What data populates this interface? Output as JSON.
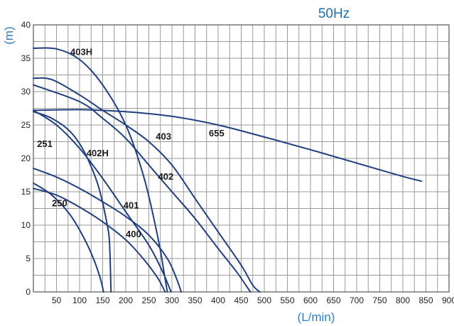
{
  "chart_data": {
    "type": "line",
    "title": "50Hz",
    "xlabel": "(L/min)",
    "ylabel": "(m)",
    "xlim": [
      0,
      900
    ],
    "ylim": [
      0,
      40
    ],
    "x_ticks": [
      50,
      100,
      150,
      200,
      250,
      300,
      350,
      400,
      450,
      500,
      550,
      600,
      650,
      700,
      750,
      800,
      850,
      900
    ],
    "y_ticks": [
      0,
      5,
      10,
      15,
      20,
      25,
      30,
      35,
      40
    ],
    "grid": true,
    "line_color": "#1f3f7f",
    "grid_color": "#9a9a9a",
    "series": [
      {
        "name": "403H",
        "label_at": [
          80,
          35.5
        ],
        "points": [
          [
            0,
            36.5
          ],
          [
            50,
            36.4
          ],
          [
            100,
            34.8
          ],
          [
            150,
            31
          ],
          [
            200,
            25
          ],
          [
            240,
            17
          ],
          [
            270,
            8
          ],
          [
            285,
            2
          ],
          [
            290,
            0
          ]
        ]
      },
      {
        "name": "655",
        "label_at": [
          380,
          23.3
        ],
        "points": [
          [
            0,
            27.2
          ],
          [
            100,
            27.3
          ],
          [
            200,
            27.0
          ],
          [
            300,
            26.3
          ],
          [
            400,
            25.0
          ],
          [
            500,
            23.2
          ],
          [
            600,
            21.3
          ],
          [
            700,
            19.3
          ],
          [
            800,
            17.3
          ],
          [
            840,
            16.6
          ]
        ]
      },
      {
        "name": "403",
        "label_at": [
          265,
          22.8
        ],
        "points": [
          [
            0,
            32
          ],
          [
            40,
            31.8
          ],
          [
            100,
            29.5
          ],
          [
            150,
            27.2
          ],
          [
            200,
            25
          ],
          [
            250,
            22.5
          ],
          [
            300,
            19
          ],
          [
            350,
            14
          ],
          [
            400,
            9
          ],
          [
            450,
            4
          ],
          [
            475,
            1
          ],
          [
            490,
            0
          ]
        ]
      },
      {
        "name": "402",
        "label_at": [
          270,
          16.8
        ],
        "points": [
          [
            0,
            31
          ],
          [
            100,
            28.5
          ],
          [
            150,
            26
          ],
          [
            200,
            23
          ],
          [
            250,
            19
          ],
          [
            300,
            15
          ],
          [
            350,
            11
          ],
          [
            400,
            6.5
          ],
          [
            440,
            3
          ],
          [
            460,
            1
          ],
          [
            470,
            0
          ]
        ]
      },
      {
        "name": "251",
        "label_at": [
          8,
          21.7
        ],
        "points": [
          [
            0,
            27
          ],
          [
            40,
            26
          ],
          [
            80,
            24
          ],
          [
            110,
            21
          ],
          [
            140,
            16
          ],
          [
            160,
            10
          ],
          [
            165,
            7
          ],
          [
            168,
            0
          ]
        ]
      },
      {
        "name": "402H",
        "label_at": [
          115,
          20.3
        ],
        "points": [
          [
            0,
            27.2
          ],
          [
            50,
            25
          ],
          [
            100,
            21.5
          ],
          [
            150,
            17
          ],
          [
            200,
            12
          ],
          [
            250,
            7
          ],
          [
            280,
            3
          ],
          [
            298,
            0
          ]
        ]
      },
      {
        "name": "401",
        "label_at": [
          195,
          12.5
        ],
        "points": [
          [
            0,
            18.5
          ],
          [
            50,
            17.2
          ],
          [
            100,
            15.5
          ],
          [
            150,
            13.5
          ],
          [
            200,
            11.3
          ],
          [
            250,
            8.5
          ],
          [
            290,
            5
          ],
          [
            310,
            2
          ],
          [
            320,
            0
          ]
        ]
      },
      {
        "name": "250",
        "label_at": [
          40,
          12.8
        ],
        "points": [
          [
            0,
            16.3
          ],
          [
            40,
            14.5
          ],
          [
            80,
            11.5
          ],
          [
            110,
            8
          ],
          [
            130,
            5
          ],
          [
            145,
            2
          ],
          [
            152,
            0
          ]
        ]
      },
      {
        "name": "400",
        "label_at": [
          200,
          8.2
        ],
        "points": [
          [
            0,
            15.5
          ],
          [
            50,
            14.5
          ],
          [
            100,
            12.7
          ],
          [
            150,
            10.5
          ],
          [
            200,
            7.8
          ],
          [
            240,
            4.8
          ],
          [
            270,
            2
          ],
          [
            285,
            0
          ]
        ]
      }
    ]
  }
}
